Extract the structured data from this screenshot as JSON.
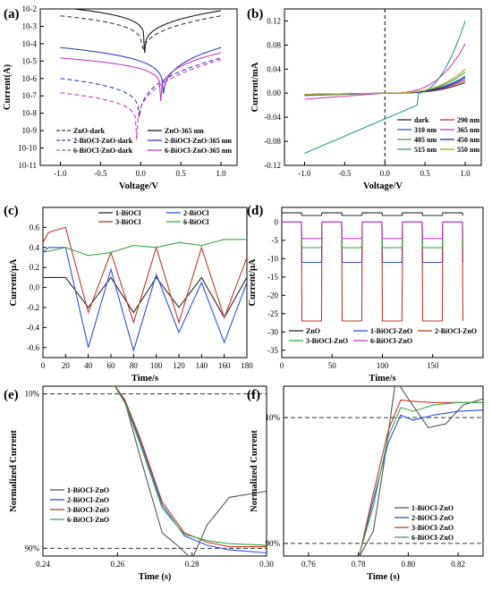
{
  "chart_data": [
    {
      "panel": "(a)",
      "type": "line",
      "xlabel": "Voltage/V",
      "ylabel": "Current(A)",
      "xlim": [
        -1.25,
        1.2
      ],
      "ylim_log10": [
        -11,
        -2
      ],
      "yscale": "log",
      "xticks": [
        -1.0,
        -0.5,
        0.0,
        0.5,
        1.0
      ],
      "xtick_labels": [
        "-1.0",
        "-0.5",
        "0.0",
        "0.5",
        "1.0"
      ],
      "yticks_log10": [
        -11,
        -10,
        -9,
        -8,
        -7,
        -6,
        -5,
        -4,
        -3,
        -2
      ],
      "ytick_labels": [
        "10-11",
        "10-10",
        "10-9",
        "10-8",
        "10-7",
        "10-6",
        "10-5",
        "10-4",
        "10-3",
        "10-2"
      ],
      "legend_position": "bottom",
      "series": [
        {
          "name": "ZnO-dark",
          "color": "#3a3a3a",
          "dash": true,
          "dip_x": 0.02,
          "i_neg": 0.004,
          "i_pos": 0.004,
          "i_min": 1e-05
        },
        {
          "name": "ZnO-365 nm",
          "color": "#1a1a1a",
          "dash": false,
          "dip_x": 0.05,
          "i_neg": 0.012,
          "i_pos": 0.008,
          "i_min": 3e-05
        },
        {
          "name": "2-BiOCl-ZnO-dark",
          "color": "#3340c4",
          "dash": true,
          "dip_x": -0.02,
          "i_neg": 1e-06,
          "i_pos": 1.5e-05,
          "i_min": 1e-09
        },
        {
          "name": "2-BiOCl-ZnO-365 nm",
          "color": "#3340c4",
          "dash": false,
          "dip_x": 0.28,
          "i_neg": 6e-05,
          "i_pos": 6e-05,
          "i_min": 3e-08
        },
        {
          "name": "6-BiOCl-ZnO-dark",
          "color": "#c43dc4",
          "dash": true,
          "dip_x": -0.05,
          "i_neg": 1.5e-07,
          "i_pos": 1.2e-05,
          "i_min": 3e-10
        },
        {
          "name": "6-BiOCl-ZnO-365 nm",
          "color": "#c43dc4",
          "dash": false,
          "dip_x": 0.25,
          "i_neg": 1.5e-05,
          "i_pos": 3e-05,
          "i_min": 5e-08
        }
      ]
    },
    {
      "panel": "(b)",
      "type": "line",
      "xlabel": "Voltage/V",
      "ylabel": "Current/mA",
      "xlim": [
        -1.25,
        1.2
      ],
      "ylim": [
        -0.12,
        0.14
      ],
      "xticks": [
        -1.0,
        -0.5,
        0.0,
        0.5,
        1.0
      ],
      "xtick_labels": [
        "-1.0",
        "-0.5",
        "0.0",
        "0.5",
        "1.0"
      ],
      "yticks": [
        -0.12,
        -0.08,
        -0.04,
        0.0,
        0.04,
        0.08,
        0.12
      ],
      "ytick_labels": [
        "-0.12",
        "-0.08",
        "-0.04",
        "0.00",
        "0.04",
        "0.08",
        "0.12"
      ],
      "vline_x": 0,
      "legend_position": "bottom-right",
      "series": [
        {
          "name": "dark",
          "color": "#2a2a2a",
          "y_at_minus1": -0.002,
          "y_at_1": 0.018
        },
        {
          "name": "290 nm",
          "color": "#d62728",
          "y_at_minus1": -0.003,
          "y_at_1": 0.022
        },
        {
          "name": "310 nm",
          "color": "#2f5bd8",
          "y_at_minus1": -0.004,
          "y_at_1": 0.025
        },
        {
          "name": "365 nm",
          "color": "#d43db4",
          "y_at_minus1": -0.01,
          "y_at_1": 0.082
        },
        {
          "name": "405 nm",
          "color": "#3aa84a",
          "y_at_minus1": -0.003,
          "y_at_1": 0.035
        },
        {
          "name": "450 nm",
          "color": "#1e2e8c",
          "y_at_minus1": -0.002,
          "y_at_1": 0.028
        },
        {
          "name": "515 nm",
          "color": "#2a9d8f",
          "y_at_minus1": -0.1,
          "y_at_1": 0.12
        },
        {
          "name": "550 nm",
          "color": "#b8a020",
          "y_at_minus1": -0.002,
          "y_at_1": 0.04
        }
      ]
    },
    {
      "panel": "(c)",
      "type": "line",
      "xlabel": "Time/s",
      "ylabel": "Current/μA",
      "xlim": [
        0,
        180
      ],
      "ylim": [
        -0.7,
        0.8
      ],
      "xticks": [
        0,
        20,
        40,
        60,
        80,
        100,
        120,
        140,
        160,
        180
      ],
      "xtick_labels": [
        "0",
        "20",
        "40",
        "60",
        "80",
        "100",
        "120",
        "140",
        "160",
        "180"
      ],
      "yticks": [
        -0.6,
        -0.4,
        -0.2,
        0.0,
        0.2,
        0.4,
        0.6
      ],
      "ytick_labels": [
        "-0.6",
        "-0.4",
        "-0.2",
        "0.0",
        "0.2",
        "0.4",
        "0.6"
      ],
      "legend_position": "top",
      "series": [
        {
          "name": "1-BiOCl",
          "color": "#2a2a2a",
          "x": [
            0,
            20,
            40,
            60,
            80,
            100,
            120,
            140,
            160,
            180
          ],
          "y": [
            0.1,
            0.1,
            -0.2,
            0.1,
            -0.25,
            0.1,
            -0.2,
            0.1,
            -0.3,
            0.1
          ]
        },
        {
          "name": "2-BiOCl",
          "color": "#2f4ee0",
          "x": [
            0,
            5,
            20,
            40,
            60,
            80,
            100,
            120,
            140,
            160,
            180
          ],
          "y": [
            0.35,
            0.4,
            0.4,
            -0.6,
            0.18,
            -0.63,
            0.13,
            -0.45,
            0.05,
            -0.55,
            0.05
          ]
        },
        {
          "name": "3-BiOCl",
          "color": "#c0392b",
          "x": [
            0,
            5,
            20,
            40,
            60,
            80,
            100,
            120,
            140,
            160,
            180
          ],
          "y": [
            0.45,
            0.55,
            0.6,
            -0.25,
            0.35,
            -0.35,
            0.4,
            -0.35,
            0.4,
            -0.3,
            0.3
          ]
        },
        {
          "name": "6-BiOCl",
          "color": "#3aa84a",
          "x": [
            0,
            20,
            40,
            60,
            80,
            100,
            120,
            140,
            160,
            180
          ],
          "y": [
            0.35,
            0.4,
            0.32,
            0.35,
            0.42,
            0.4,
            0.45,
            0.42,
            0.48,
            0.48
          ]
        }
      ]
    },
    {
      "panel": "(d)",
      "type": "line",
      "xlabel": "Time/s",
      "ylabel": "Current/μA",
      "xlim": [
        0,
        200
      ],
      "ylim": [
        -37,
        4
      ],
      "xticks": [
        0,
        50,
        100,
        150
      ],
      "xtick_labels": [
        "0",
        "50",
        "100",
        "150"
      ],
      "yticks": [
        -35,
        -30,
        -25,
        -20,
        -15,
        -10,
        -5,
        0
      ],
      "ytick_labels": [
        "-35",
        "-30",
        "-25",
        "-20",
        "-15",
        "-10",
        "-5",
        "0"
      ],
      "legend_position": "bottom",
      "pulse_on_s": 20,
      "pulse_period_s": 40,
      "series": [
        {
          "name": "ZnO",
          "color": "#2a2a2a",
          "baseline": 2.5,
          "on_level": 1.8
        },
        {
          "name": "1-BiOCl-ZnO",
          "color": "#2f4ee0",
          "baseline": 0.0,
          "on_level": -11.0
        },
        {
          "name": "2-BiOCl-ZnO",
          "color": "#c0392b",
          "baseline": 0.0,
          "on_level": -27.0
        },
        {
          "name": "3-BiOCl-ZnO",
          "color": "#3aa84a",
          "baseline": 0.0,
          "on_level": -7.0
        },
        {
          "name": "6-BiOCl-ZnO",
          "color": "#c43dc4",
          "baseline": 0.0,
          "on_level": -4.5
        }
      ]
    },
    {
      "panel": "(e)",
      "type": "line",
      "xlabel": "Time (s)",
      "ylabel": "Normalized Current",
      "xlim": [
        0.24,
        0.3
      ],
      "ylim": [
        -0.05,
        1.05
      ],
      "xticks": [
        0.24,
        0.26,
        0.28,
        0.3
      ],
      "xtick_labels": [
        "0.24",
        "0.26",
        "0.28",
        "0.30"
      ],
      "yticks": [
        0.0,
        1.0
      ],
      "ytick_labels": [
        "90%",
        "10%"
      ],
      "hlines": [
        0.0,
        1.0
      ],
      "legend_position": "left",
      "series": [
        {
          "name": "1-BiOCl-ZnO",
          "color": "#555555",
          "x": [
            0.24,
            0.258,
            0.262,
            0.266,
            0.272,
            0.276,
            0.28,
            0.284,
            0.29,
            0.3
          ],
          "y": [
            1.1,
            1.1,
            0.95,
            0.6,
            0.1,
            0.02,
            -0.07,
            0.15,
            0.33,
            0.37
          ]
        },
        {
          "name": "2-BiOCl-ZnO",
          "color": "#2f4ee0",
          "x": [
            0.24,
            0.258,
            0.262,
            0.266,
            0.272,
            0.278,
            0.284,
            0.29,
            0.3
          ],
          "y": [
            1.1,
            1.1,
            0.95,
            0.7,
            0.28,
            0.08,
            0.02,
            -0.01,
            -0.03
          ]
        },
        {
          "name": "3-BiOCl-ZnO",
          "color": "#c0392b",
          "x": [
            0.24,
            0.258,
            0.262,
            0.266,
            0.272,
            0.278,
            0.284,
            0.29,
            0.3
          ],
          "y": [
            1.1,
            1.1,
            0.96,
            0.72,
            0.3,
            0.1,
            0.04,
            0.01,
            0.01
          ]
        },
        {
          "name": "6-BiOCl-ZnO",
          "color": "#3aa84a",
          "x": [
            0.24,
            0.258,
            0.262,
            0.266,
            0.272,
            0.278,
            0.284,
            0.29,
            0.3
          ],
          "y": [
            1.1,
            1.1,
            0.94,
            0.68,
            0.26,
            0.09,
            0.05,
            0.03,
            0.02
          ]
        }
      ]
    },
    {
      "panel": "(f)",
      "type": "line",
      "xlabel": "Time (s)",
      "ylabel": "Normalized Current",
      "xlim": [
        0.75,
        0.83
      ],
      "ylim": [
        -0.1,
        1.25
      ],
      "xticks": [
        0.76,
        0.78,
        0.8,
        0.82
      ],
      "xtick_labels": [
        "0.76",
        "0.78",
        "0.80",
        "0.82"
      ],
      "yticks": [
        0.0,
        1.0
      ],
      "ytick_labels": [
        "90%",
        "10%"
      ],
      "hlines": [
        0.0,
        1.0
      ],
      "legend_position": "bottom-right",
      "series": [
        {
          "name": "1-BiOCl-ZnO",
          "color": "#555555",
          "x": [
            0.75,
            0.78,
            0.786,
            0.79,
            0.795,
            0.8,
            0.808,
            0.815,
            0.822,
            0.83
          ],
          "y": [
            -0.12,
            -0.12,
            0.1,
            0.6,
            1.3,
            1.15,
            0.92,
            0.95,
            1.1,
            1.15
          ]
        },
        {
          "name": "2-BiOCl-ZnO",
          "color": "#2f4ee0",
          "x": [
            0.75,
            0.78,
            0.786,
            0.792,
            0.797,
            0.802,
            0.81,
            0.82,
            0.83
          ],
          "y": [
            -0.12,
            -0.12,
            0.35,
            0.8,
            1.02,
            0.98,
            1.02,
            1.05,
            1.06
          ]
        },
        {
          "name": "3-BiOCl-ZnO",
          "color": "#c0392b",
          "x": [
            0.75,
            0.78,
            0.786,
            0.792,
            0.797,
            0.802,
            0.81,
            0.82,
            0.83
          ],
          "y": [
            -0.13,
            -0.13,
            0.4,
            0.9,
            1.14,
            1.13,
            1.12,
            1.12,
            1.12
          ]
        },
        {
          "name": "6-BiOCl-ZnO",
          "color": "#3aa84a",
          "x": [
            0.75,
            0.78,
            0.786,
            0.792,
            0.797,
            0.802,
            0.81,
            0.82,
            0.83
          ],
          "y": [
            -0.12,
            -0.12,
            0.3,
            0.85,
            1.08,
            1.05,
            1.1,
            1.12,
            1.12
          ]
        }
      ]
    }
  ]
}
